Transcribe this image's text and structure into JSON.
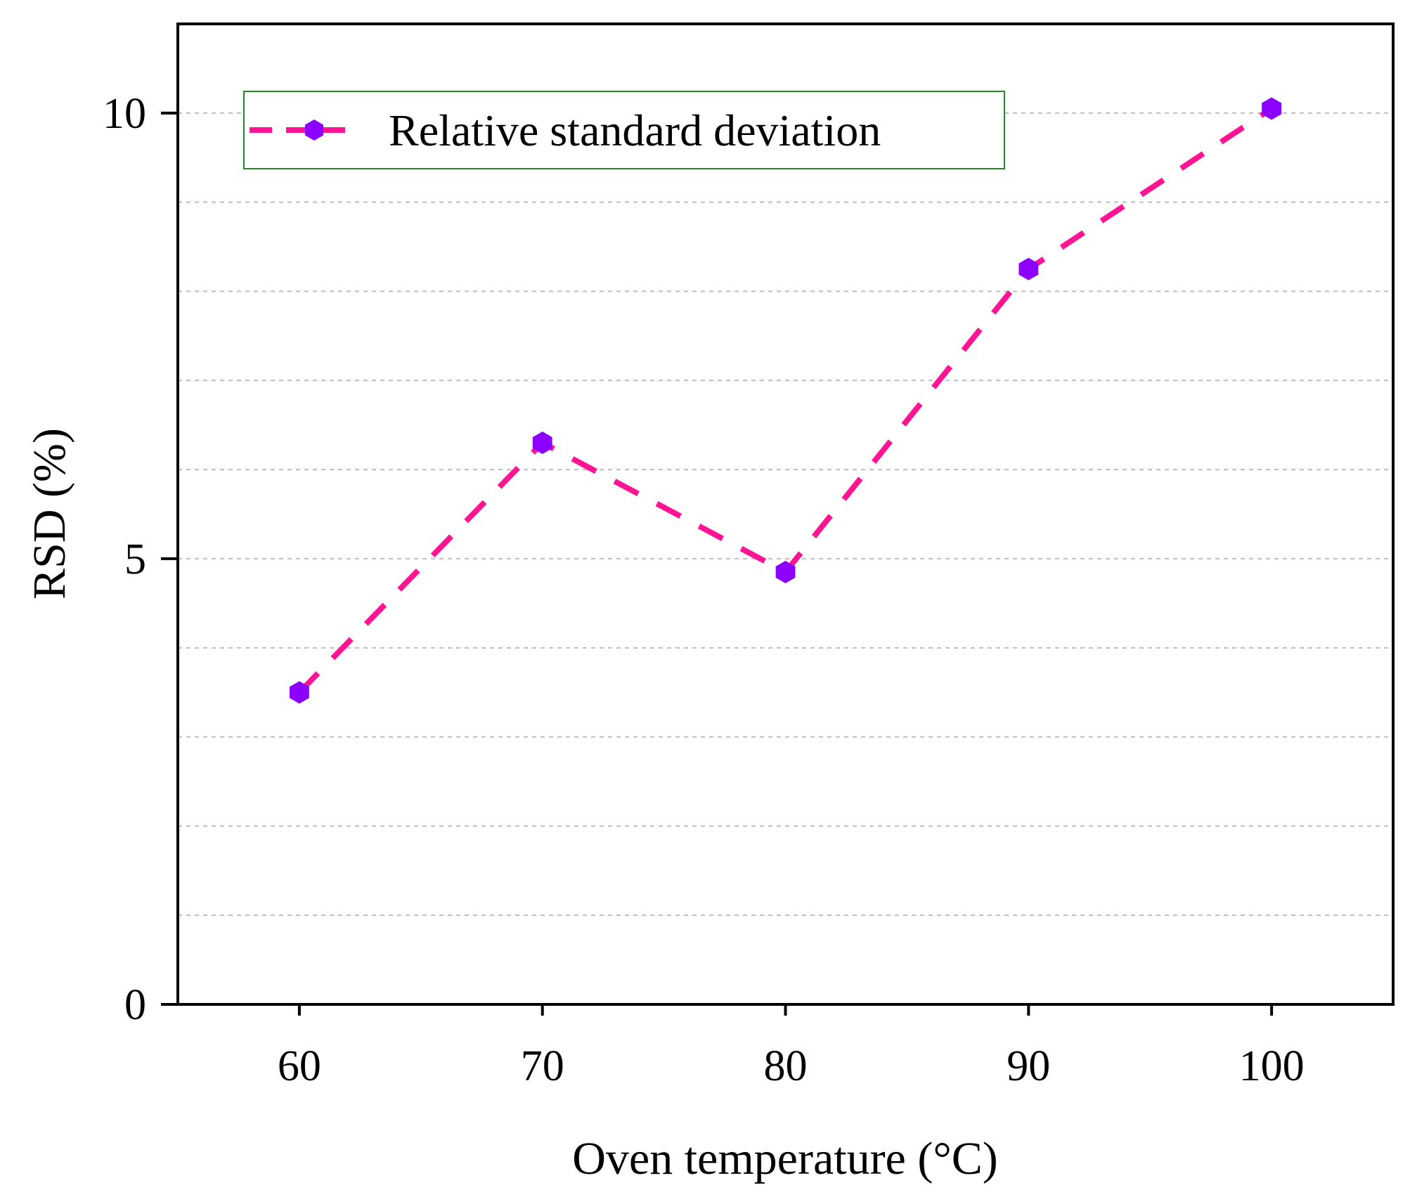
{
  "chart_data": {
    "type": "line",
    "xlabel": "Oven temperature (°C)",
    "ylabel": "RSD (%)",
    "xlim": [
      55,
      105
    ],
    "ylim": [
      0,
      11
    ],
    "x_ticks": [
      60,
      70,
      80,
      90,
      100
    ],
    "x_tick_labels": [
      "60",
      "70",
      "80",
      "90",
      "100"
    ],
    "y_ticks": [
      0,
      5,
      10
    ],
    "y_tick_labels": [
      "0",
      "5",
      "10"
    ],
    "y_gridlines": [
      1,
      2,
      3,
      4,
      5,
      6,
      7,
      8,
      9,
      10
    ],
    "grid": "horizontal dashed",
    "legend_position": "top-left",
    "series": [
      {
        "name": "Relative standard deviation",
        "x": [
          60,
          70,
          80,
          90,
          100
        ],
        "y": [
          3.5,
          6.3,
          4.85,
          8.25,
          10.05
        ],
        "line_color": "#ff1493",
        "line_style": "dashed",
        "marker": "hexagon",
        "marker_color": "#8b00ff"
      }
    ]
  }
}
